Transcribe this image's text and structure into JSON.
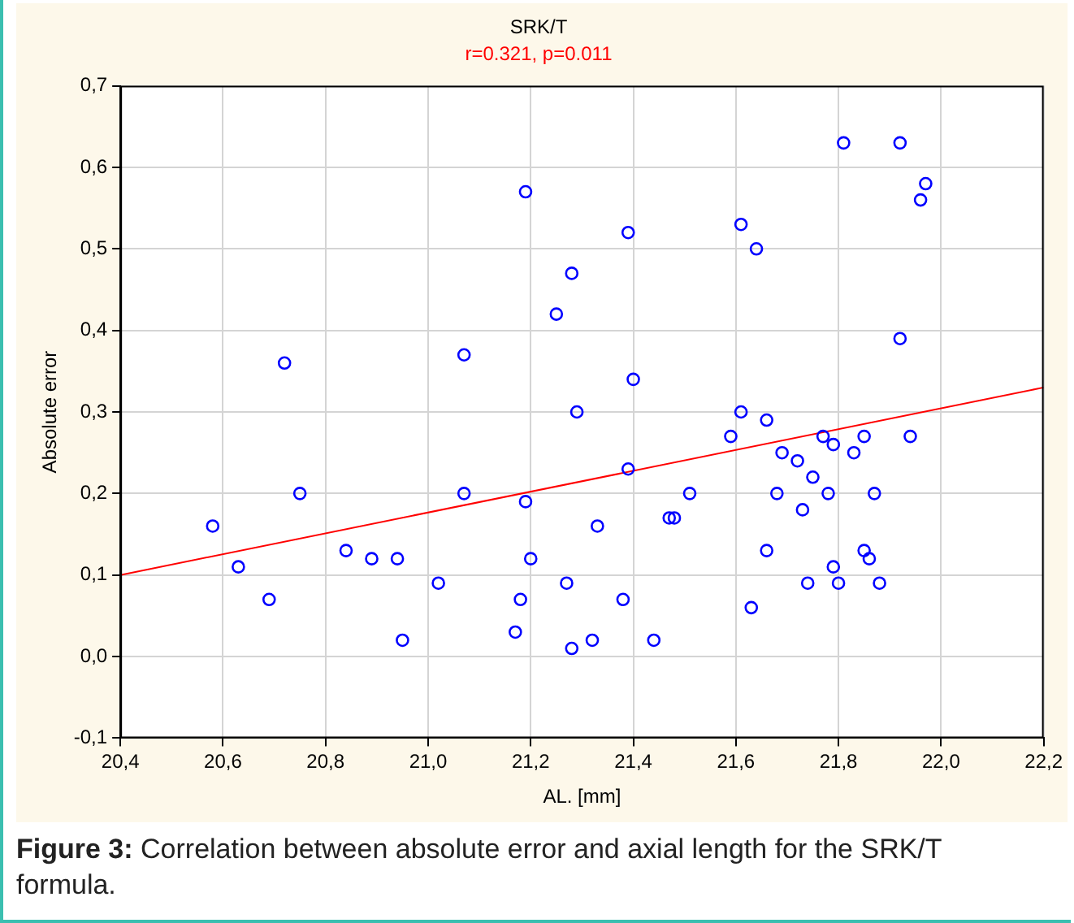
{
  "chart_data": {
    "type": "scatter",
    "title": "SRK/T",
    "subtitle": "r=0.321, p=0.011",
    "xlabel": "AL. [mm]",
    "ylabel": "Absolute error",
    "annotations": [
      "Figure 3: Correlation between absolute error and axial length for the SRK/T formula."
    ],
    "xlim": [
      20.4,
      22.2
    ],
    "ylim": [
      -0.1,
      0.7
    ],
    "xticks": [
      {
        "value": 20.4,
        "label": "20,4"
      },
      {
        "value": 20.6,
        "label": "20,6"
      },
      {
        "value": 20.8,
        "label": "20,8"
      },
      {
        "value": 21.0,
        "label": "21,0"
      },
      {
        "value": 21.2,
        "label": "21,2"
      },
      {
        "value": 21.4,
        "label": "21,4"
      },
      {
        "value": 21.6,
        "label": "21,6"
      },
      {
        "value": 21.8,
        "label": "21,8"
      },
      {
        "value": 22.0,
        "label": "22,0"
      },
      {
        "value": 22.2,
        "label": "22,2"
      }
    ],
    "yticks": [
      {
        "value": -0.1,
        "label": "-0,1"
      },
      {
        "value": 0,
        "label": "0,0"
      },
      {
        "value": 0.1,
        "label": "0,1"
      },
      {
        "value": 0.2,
        "label": "0,2"
      },
      {
        "value": 0.3,
        "label": "0,3"
      },
      {
        "value": 0.4,
        "label": "0,4"
      },
      {
        "value": 0.5,
        "label": "0,5"
      },
      {
        "value": 0.6,
        "label": "0,6"
      },
      {
        "value": 0.7,
        "label": "0,7"
      }
    ],
    "grid": true,
    "legend": false,
    "marker": "circle",
    "series": [
      {
        "color": "#0000ff",
        "x": [
          20.58,
          20.63,
          20.69,
          20.72,
          20.75,
          20.84,
          20.89,
          20.94,
          20.95,
          21.02,
          21.07,
          21.07,
          21.17,
          21.18,
          21.19,
          21.19,
          21.2,
          21.25,
          21.27,
          21.28,
          21.28,
          21.29,
          21.32,
          21.33,
          21.38,
          21.39,
          21.39,
          21.4,
          21.44,
          21.47,
          21.48,
          21.51,
          21.59,
          21.61,
          21.61,
          21.63,
          21.64,
          21.66,
          21.66,
          21.68,
          21.69,
          21.72,
          21.73,
          21.74,
          21.75,
          21.77,
          21.78,
          21.79,
          21.79,
          21.8,
          21.81,
          21.83,
          21.85,
          21.85,
          21.86,
          21.87,
          21.88,
          21.92,
          21.92,
          21.94,
          21.96,
          21.97
        ],
        "values": [
          0.16,
          0.11,
          0.07,
          0.36,
          0.2,
          0.13,
          0.12,
          0.12,
          0.02,
          0.09,
          0.37,
          0.2,
          0.03,
          0.07,
          0.57,
          0.19,
          0.12,
          0.42,
          0.09,
          0.47,
          0.01,
          0.3,
          0.02,
          0.16,
          0.07,
          0.52,
          0.23,
          0.34,
          0.02,
          0.17,
          0.17,
          0.2,
          0.27,
          0.53,
          0.3,
          0.06,
          0.5,
          0.29,
          0.13,
          0.2,
          0.25,
          0.24,
          0.18,
          0.09,
          0.22,
          0.27,
          0.2,
          0.11,
          0.26,
          0.09,
          0.63,
          0.25,
          0.27,
          0.13,
          0.12,
          0.2,
          0.09,
          0.63,
          0.39,
          0.27,
          0.56,
          0.58
        ]
      },
      {
        "type": "line",
        "color": "#ff0000",
        "marker": "none",
        "x": [
          20.4,
          22.2
        ],
        "values": [
          0.1,
          0.33
        ]
      }
    ]
  }
}
